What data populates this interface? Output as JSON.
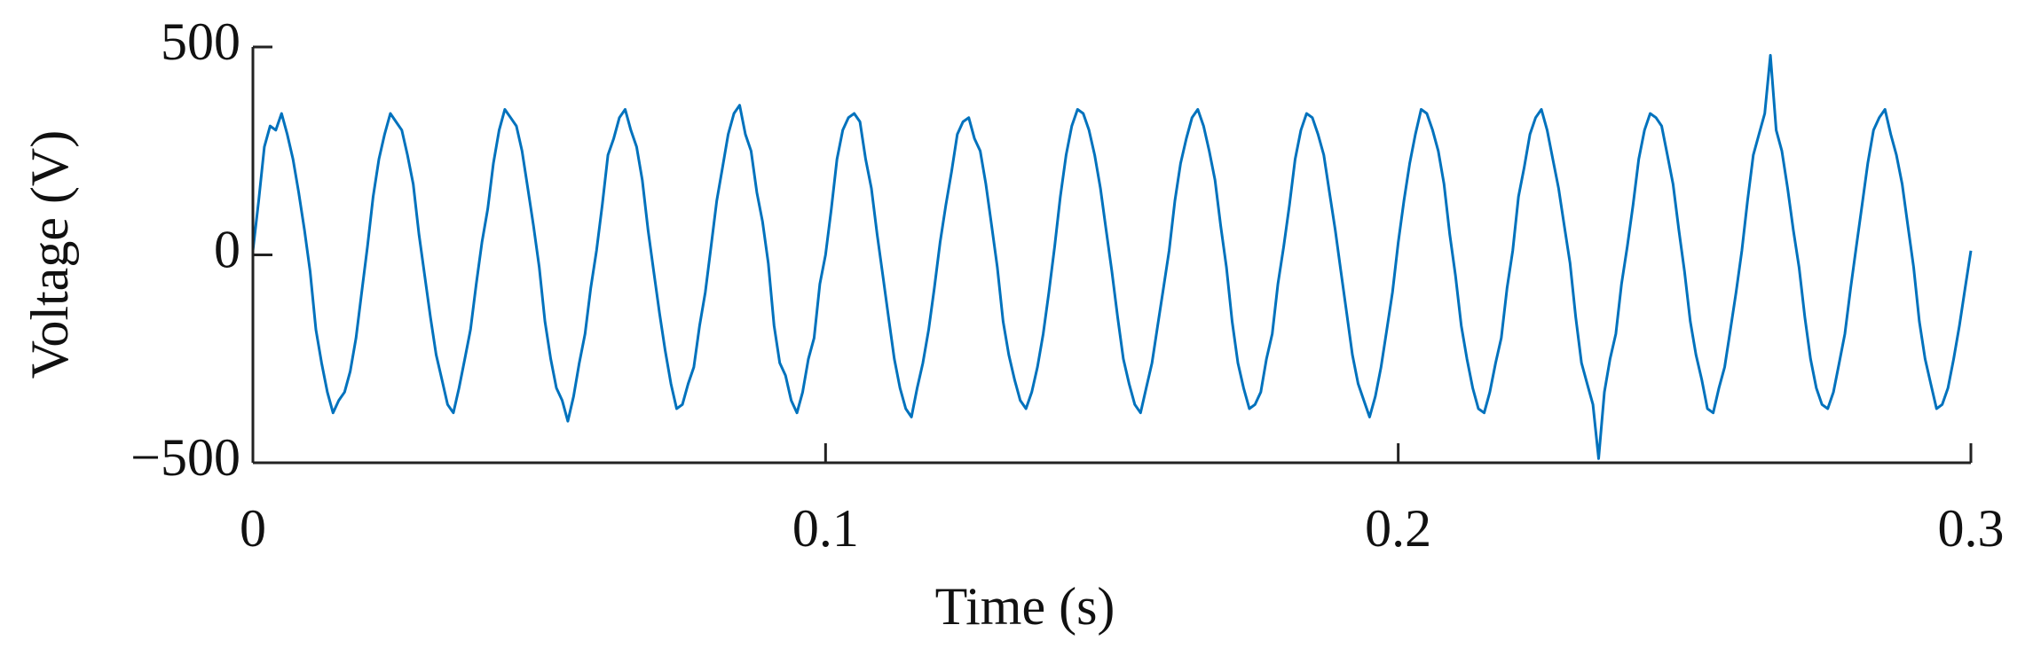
{
  "chart_data": {
    "type": "line",
    "xlabel": "Time (s)",
    "ylabel": "Voltage (V)",
    "color": "#0072bd",
    "xlim": [
      0,
      0.3
    ],
    "xticks": [
      0,
      0.1,
      0.2,
      0.3
    ],
    "ylim": [
      -500,
      500
    ],
    "yticks": [
      {
        "value": 500,
        "label": "500"
      },
      {
        "value": 0,
        "label": "0"
      },
      {
        "value": -500,
        "label": "−500"
      }
    ],
    "x": [
      0,
      0.001,
      0.002,
      0.003,
      0.004,
      0.005,
      0.006,
      0.007,
      0.008,
      0.009,
      0.01,
      0.011,
      0.012,
      0.013,
      0.014,
      0.015,
      0.016,
      0.017,
      0.018,
      0.019,
      0.02,
      0.021,
      0.022,
      0.023,
      0.024,
      0.025,
      0.026,
      0.027,
      0.028,
      0.029,
      0.03,
      0.031,
      0.032,
      0.033,
      0.034,
      0.035,
      0.036,
      0.037,
      0.038,
      0.039,
      0.04,
      0.041,
      0.042,
      0.043,
      0.044,
      0.045,
      0.046,
      0.047,
      0.048,
      0.049,
      0.05,
      0.051,
      0.052,
      0.053,
      0.054,
      0.055,
      0.056,
      0.057,
      0.058,
      0.059,
      0.06,
      0.061,
      0.062,
      0.063,
      0.064,
      0.065,
      0.066,
      0.067,
      0.068,
      0.069,
      0.07,
      0.071,
      0.072,
      0.073,
      0.074,
      0.075,
      0.076,
      0.077,
      0.078,
      0.079,
      0.08,
      0.081,
      0.082,
      0.083,
      0.084,
      0.085,
      0.086,
      0.087,
      0.088,
      0.089,
      0.09,
      0.091,
      0.092,
      0.093,
      0.094,
      0.095,
      0.096,
      0.097,
      0.098,
      0.099,
      0.1,
      0.101,
      0.102,
      0.103,
      0.104,
      0.105,
      0.106,
      0.107,
      0.108,
      0.109,
      0.11,
      0.111,
      0.112,
      0.113,
      0.114,
      0.115,
      0.116,
      0.117,
      0.118,
      0.119,
      0.12,
      0.121,
      0.122,
      0.123,
      0.124,
      0.125,
      0.126,
      0.127,
      0.128,
      0.129,
      0.13,
      0.131,
      0.132,
      0.133,
      0.134,
      0.135,
      0.136,
      0.137,
      0.138,
      0.139,
      0.14,
      0.141,
      0.142,
      0.143,
      0.144,
      0.145,
      0.146,
      0.147,
      0.148,
      0.149,
      0.15,
      0.151,
      0.152,
      0.153,
      0.154,
      0.155,
      0.156,
      0.157,
      0.158,
      0.159,
      0.16,
      0.161,
      0.162,
      0.163,
      0.164,
      0.165,
      0.166,
      0.167,
      0.168,
      0.169,
      0.17,
      0.171,
      0.172,
      0.173,
      0.174,
      0.175,
      0.176,
      0.177,
      0.178,
      0.179,
      0.18,
      0.181,
      0.182,
      0.183,
      0.184,
      0.185,
      0.186,
      0.187,
      0.188,
      0.189,
      0.19,
      0.191,
      0.192,
      0.193,
      0.194,
      0.195,
      0.196,
      0.197,
      0.198,
      0.199,
      0.2,
      0.201,
      0.202,
      0.203,
      0.204,
      0.205,
      0.206,
      0.207,
      0.208,
      0.209,
      0.21,
      0.211,
      0.212,
      0.213,
      0.214,
      0.215,
      0.216,
      0.217,
      0.218,
      0.219,
      0.22,
      0.221,
      0.222,
      0.223,
      0.224,
      0.225,
      0.226,
      0.227,
      0.228,
      0.229,
      0.23,
      0.231,
      0.232,
      0.233,
      0.234,
      0.235,
      0.236,
      0.237,
      0.238,
      0.239,
      0.24,
      0.241,
      0.242,
      0.243,
      0.244,
      0.245,
      0.246,
      0.247,
      0.248,
      0.249,
      0.25,
      0.251,
      0.252,
      0.253,
      0.254,
      0.255,
      0.256,
      0.257,
      0.258,
      0.259,
      0.26,
      0.261,
      0.262,
      0.263,
      0.264,
      0.265,
      0.266,
      0.267,
      0.268,
      0.269,
      0.27,
      0.271,
      0.272,
      0.273,
      0.274,
      0.275,
      0.276,
      0.277,
      0.278,
      0.279,
      0.28,
      0.281,
      0.282,
      0.283,
      0.284,
      0.285,
      0.286,
      0.287,
      0.288,
      0.289,
      0.29,
      0.291,
      0.292,
      0.293,
      0.294,
      0.295,
      0.296,
      0.297,
      0.298,
      0.299,
      0.3
    ],
    "values": [
      10,
      130,
      260,
      310,
      300,
      340,
      290,
      230,
      150,
      60,
      -40,
      -180,
      -260,
      -330,
      -380,
      -350,
      -330,
      -280,
      -200,
      -90,
      20,
      140,
      230,
      290,
      340,
      320,
      300,
      240,
      170,
      50,
      -50,
      -150,
      -240,
      -300,
      -360,
      -380,
      -320,
      -250,
      -180,
      -70,
      30,
      110,
      220,
      300,
      350,
      330,
      310,
      250,
      160,
      70,
      -30,
      -160,
      -250,
      -320,
      -350,
      -400,
      -340,
      -260,
      -190,
      -80,
      10,
      120,
      240,
      280,
      330,
      350,
      300,
      260,
      180,
      60,
      -40,
      -140,
      -230,
      -310,
      -370,
      -360,
      -310,
      -270,
      -170,
      -90,
      20,
      130,
      210,
      290,
      340,
      360,
      290,
      250,
      150,
      80,
      -20,
      -170,
      -260,
      -290,
      -350,
      -380,
      -330,
      -250,
      -200,
      -70,
      0,
      110,
      230,
      300,
      330,
      340,
      320,
      230,
      160,
      50,
      -50,
      -150,
      -250,
      -320,
      -370,
      -390,
      -320,
      -260,
      -180,
      -80,
      30,
      120,
      200,
      290,
      320,
      330,
      280,
      250,
      170,
      70,
      -30,
      -160,
      -240,
      -300,
      -350,
      -370,
      -330,
      -270,
      -190,
      -90,
      20,
      140,
      240,
      310,
      350,
      340,
      300,
      240,
      160,
      60,
      -40,
      -150,
      -250,
      -310,
      -360,
      -380,
      -320,
      -260,
      -170,
      -80,
      10,
      130,
      220,
      280,
      330,
      350,
      310,
      250,
      180,
      70,
      -30,
      -160,
      -260,
      -320,
      -370,
      -360,
      -330,
      -250,
      -190,
      -70,
      20,
      120,
      230,
      300,
      340,
      330,
      290,
      240,
      150,
      60,
      -40,
      -140,
      -240,
      -310,
      -350,
      -390,
      -340,
      -270,
      -180,
      -90,
      30,
      130,
      220,
      290,
      350,
      340,
      300,
      250,
      170,
      50,
      -50,
      -170,
      -250,
      -320,
      -370,
      -380,
      -330,
      -260,
      -200,
      -80,
      10,
      140,
      210,
      290,
      330,
      350,
      300,
      230,
      160,
      70,
      -20,
      -150,
      -260,
      -310,
      -360,
      -490,
      -330,
      -250,
      -190,
      -70,
      20,
      120,
      230,
      300,
      340,
      330,
      310,
      240,
      170,
      60,
      -40,
      -160,
      -240,
      -300,
      -370,
      -380,
      -320,
      -270,
      -180,
      -90,
      10,
      130,
      240,
      290,
      340,
      480,
      300,
      250,
      160,
      60,
      -30,
      -150,
      -250,
      -320,
      -360,
      -370,
      -330,
      -260,
      -190,
      -80,
      20,
      120,
      220,
      300,
      330,
      350,
      290,
      240,
      170,
      70,
      -30,
      -160,
      -250,
      -310,
      -370,
      -360,
      -320,
      -250,
      -170,
      -80,
      10
    ]
  }
}
